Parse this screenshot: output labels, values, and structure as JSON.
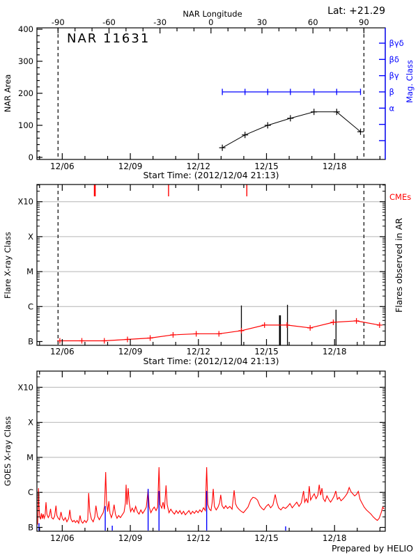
{
  "page": {
    "lat_label": "Lat: +21.29",
    "credit": "Prepared by HELIO"
  },
  "colors": {
    "red": "#ff0000",
    "blue": "#0000ff",
    "grid": "#b4b4b4",
    "black": "#000000",
    "background": "#ffffff"
  },
  "time_axis": {
    "start_label": "Start Time: (2012/12/04 21:13)",
    "xlim_days": [
      0,
      15.35
    ],
    "day_tick_first_offset": 0.116,
    "num_day_ticks": 16,
    "major_day_indices": [
      1,
      4,
      7,
      10,
      13
    ],
    "major_labels": [
      "12/06",
      "12/09",
      "12/12",
      "12/15",
      "12/18"
    ]
  },
  "chart_data": [
    {
      "id": "nar-area",
      "type": "line",
      "title": "NAR 11631",
      "ylabel": "NAR Area",
      "ylim": [
        0,
        400
      ],
      "ytick_values": [
        0,
        100,
        200,
        300,
        400
      ],
      "y_minor_step": 20,
      "top_axis": {
        "label": "NAR Longitude",
        "tick_labels": [
          "-90",
          "-60",
          "-30",
          "0",
          "30",
          "60",
          "90"
        ],
        "tick_degrees": [
          -90,
          -60,
          -30,
          0,
          30,
          60,
          90
        ],
        "minor_step_deg": 10,
        "deg_range": [
          -90,
          90
        ],
        "day_range": [
          0.93,
          14.41
        ]
      },
      "mag_axis": {
        "label": "Mag. Class",
        "tick_labels": [
          "βγδ",
          "βδ",
          "βγ",
          "β",
          "α"
        ],
        "beta_index": 3
      },
      "dashed_vlines_days": [
        0.93,
        14.41
      ],
      "series": [
        {
          "name": "nar-area-curve",
          "days": [
            8.17,
            9.17,
            10.17,
            11.17,
            12.21,
            13.21,
            14.26
          ],
          "values": [
            30,
            70,
            100,
            122,
            142,
            142,
            80
          ]
        },
        {
          "name": "mag-class-line",
          "level": "β",
          "days": [
            8.17,
            9.17,
            10.17,
            11.17,
            12.21,
            13.21,
            14.26
          ]
        }
      ],
      "xlabel": "Start Time: (2012/12/04 21:13)"
    },
    {
      "id": "flare-class",
      "type": "line",
      "ylabel": "Flare X-ray Class",
      "ytick_labels": [
        "B",
        "C",
        "M",
        "X",
        "X10"
      ],
      "right_label": "Flares observed in AR",
      "cmes": {
        "label": "CMEs",
        "days": [
          2.55,
          5.8,
          9.25
        ],
        "widths": [
          2.6,
          1.4,
          1.4
        ]
      },
      "flares": {
        "days": [
          9.01,
          10.71,
          11.04,
          13.18
        ],
        "peak_log_flux": [
          -5.97,
          -6.25,
          -5.95,
          -6.09
        ],
        "widths": [
          1.3,
          2.6,
          1.3,
          1.3
        ]
      },
      "daily_mean": {
        "days": [
          1.01,
          1.98,
          2.97,
          3.99,
          4.99,
          6.0,
          7.02,
          8.02,
          9.01,
          10.03,
          11.02,
          12.04,
          13.06,
          14.08,
          15.1
        ],
        "log_flux": [
          -6.98,
          -6.98,
          -6.98,
          -6.94,
          -6.9,
          -6.81,
          -6.78,
          -6.78,
          -6.69,
          -6.53,
          -6.53,
          -6.61,
          -6.45,
          -6.41,
          -6.53
        ]
      },
      "dashed_vlines_days": [
        0.93,
        14.41
      ],
      "xlabel": "Start Time: (2012/12/04 21:13)"
    },
    {
      "id": "goes-flux",
      "type": "line",
      "ylabel": "GOES X-ray Class",
      "ytick_labels": [
        "B",
        "C",
        "M",
        "X",
        "X10"
      ],
      "blue_vlines": {
        "days": [
          0.09,
          3.01,
          3.32,
          4.9,
          5.38,
          7.48,
          10.96
        ],
        "top_log_flux": [
          -6.88,
          -6.39,
          -6.95,
          -5.9,
          -5.96,
          -5.96,
          -6.97
        ]
      },
      "flux_log": [
        [
          0.03,
          -6.92
        ],
        [
          0.05,
          -6.55
        ],
        [
          0.07,
          -5.88
        ],
        [
          0.09,
          -6.35
        ],
        [
          0.12,
          -6.68
        ],
        [
          0.16,
          -6.77
        ],
        [
          0.2,
          -6.6
        ],
        [
          0.24,
          -6.75
        ],
        [
          0.28,
          -6.62
        ],
        [
          0.32,
          -6.74
        ],
        [
          0.36,
          -6.66
        ],
        [
          0.4,
          -6.28
        ],
        [
          0.44,
          -6.62
        ],
        [
          0.5,
          -6.72
        ],
        [
          0.55,
          -6.66
        ],
        [
          0.6,
          -6.47
        ],
        [
          0.65,
          -6.72
        ],
        [
          0.72,
          -6.76
        ],
        [
          0.78,
          -6.68
        ],
        [
          0.84,
          -6.38
        ],
        [
          0.88,
          -6.66
        ],
        [
          0.94,
          -6.74
        ],
        [
          1.0,
          -6.78
        ],
        [
          1.06,
          -6.56
        ],
        [
          1.12,
          -6.74
        ],
        [
          1.18,
          -6.8
        ],
        [
          1.25,
          -6.72
        ],
        [
          1.32,
          -6.84
        ],
        [
          1.4,
          -6.74
        ],
        [
          1.45,
          -6.5
        ],
        [
          1.5,
          -6.76
        ],
        [
          1.57,
          -6.84
        ],
        [
          1.64,
          -6.8
        ],
        [
          1.7,
          -6.86
        ],
        [
          1.77,
          -6.8
        ],
        [
          1.84,
          -6.88
        ],
        [
          1.9,
          -6.66
        ],
        [
          1.95,
          -6.82
        ],
        [
          2.02,
          -6.88
        ],
        [
          2.1,
          -6.8
        ],
        [
          2.17,
          -6.86
        ],
        [
          2.24,
          -6.78
        ],
        [
          2.28,
          -6.02
        ],
        [
          2.33,
          -6.55
        ],
        [
          2.4,
          -6.76
        ],
        [
          2.48,
          -6.84
        ],
        [
          2.55,
          -6.7
        ],
        [
          2.6,
          -6.38
        ],
        [
          2.67,
          -6.68
        ],
        [
          2.75,
          -6.78
        ],
        [
          2.83,
          -6.68
        ],
        [
          2.92,
          -6.58
        ],
        [
          2.98,
          -6.4
        ],
        [
          3.03,
          -5.42
        ],
        [
          3.07,
          -6.3
        ],
        [
          3.12,
          -6.55
        ],
        [
          3.17,
          -6.25
        ],
        [
          3.22,
          -6.6
        ],
        [
          3.28,
          -6.72
        ],
        [
          3.34,
          -6.6
        ],
        [
          3.4,
          -6.35
        ],
        [
          3.46,
          -6.62
        ],
        [
          3.53,
          -6.74
        ],
        [
          3.6,
          -6.66
        ],
        [
          3.68,
          -6.72
        ],
        [
          3.76,
          -6.64
        ],
        [
          3.84,
          -6.56
        ],
        [
          3.9,
          -6.3
        ],
        [
          3.93,
          -5.78
        ],
        [
          3.97,
          -6.35
        ],
        [
          4.02,
          -5.88
        ],
        [
          4.07,
          -6.3
        ],
        [
          4.13,
          -6.55
        ],
        [
          4.2,
          -6.45
        ],
        [
          4.28,
          -6.56
        ],
        [
          4.35,
          -6.4
        ],
        [
          4.43,
          -6.56
        ],
        [
          4.5,
          -6.62
        ],
        [
          4.58,
          -6.5
        ],
        [
          4.66,
          -6.6
        ],
        [
          4.74,
          -6.52
        ],
        [
          4.82,
          -6.42
        ],
        [
          4.9,
          -5.92
        ],
        [
          4.95,
          -6.42
        ],
        [
          5.02,
          -6.58
        ],
        [
          5.1,
          -6.48
        ],
        [
          5.17,
          -6.42
        ],
        [
          5.25,
          -6.52
        ],
        [
          5.32,
          -6.42
        ],
        [
          5.38,
          -5.28
        ],
        [
          5.43,
          -6.35
        ],
        [
          5.5,
          -6.45
        ],
        [
          5.56,
          -6.28
        ],
        [
          5.62,
          -6.48
        ],
        [
          5.69,
          -5.8
        ],
        [
          5.74,
          -6.35
        ],
        [
          5.82,
          -6.58
        ],
        [
          5.9,
          -6.48
        ],
        [
          5.98,
          -6.56
        ],
        [
          6.06,
          -6.62
        ],
        [
          6.14,
          -6.52
        ],
        [
          6.22,
          -6.6
        ],
        [
          6.3,
          -6.52
        ],
        [
          6.38,
          -6.62
        ],
        [
          6.46,
          -6.54
        ],
        [
          6.54,
          -6.64
        ],
        [
          6.62,
          -6.58
        ],
        [
          6.7,
          -6.52
        ],
        [
          6.78,
          -6.62
        ],
        [
          6.86,
          -6.54
        ],
        [
          6.94,
          -6.6
        ],
        [
          7.02,
          -6.52
        ],
        [
          7.1,
          -6.58
        ],
        [
          7.18,
          -6.5
        ],
        [
          7.26,
          -6.56
        ],
        [
          7.34,
          -6.44
        ],
        [
          7.42,
          -6.52
        ],
        [
          7.48,
          -5.28
        ],
        [
          7.53,
          -6.35
        ],
        [
          7.6,
          -6.48
        ],
        [
          7.67,
          -6.52
        ],
        [
          7.72,
          -6.3
        ],
        [
          7.77,
          -5.9
        ],
        [
          7.82,
          -6.4
        ],
        [
          7.9,
          -6.5
        ],
        [
          7.98,
          -6.42
        ],
        [
          8.05,
          -6.3
        ],
        [
          8.1,
          -6.07
        ],
        [
          8.16,
          -6.38
        ],
        [
          8.24,
          -6.46
        ],
        [
          8.32,
          -6.38
        ],
        [
          8.4,
          -6.46
        ],
        [
          8.5,
          -6.4
        ],
        [
          8.6,
          -6.48
        ],
        [
          8.69,
          -5.94
        ],
        [
          8.75,
          -6.32
        ],
        [
          8.82,
          -6.42
        ],
        [
          8.9,
          -6.48
        ],
        [
          9.0,
          -6.54
        ],
        [
          9.1,
          -6.58
        ],
        [
          9.2,
          -6.5
        ],
        [
          9.3,
          -6.42
        ],
        [
          9.42,
          -6.22
        ],
        [
          9.52,
          -6.14
        ],
        [
          9.62,
          -6.16
        ],
        [
          9.72,
          -6.22
        ],
        [
          9.82,
          -6.38
        ],
        [
          9.92,
          -6.46
        ],
        [
          10.0,
          -6.5
        ],
        [
          10.1,
          -6.4
        ],
        [
          10.2,
          -6.34
        ],
        [
          10.3,
          -6.44
        ],
        [
          10.4,
          -6.36
        ],
        [
          10.5,
          -6.06
        ],
        [
          10.57,
          -6.28
        ],
        [
          10.65,
          -6.44
        ],
        [
          10.75,
          -6.5
        ],
        [
          10.85,
          -6.42
        ],
        [
          10.95,
          -6.46
        ],
        [
          11.05,
          -6.4
        ],
        [
          11.15,
          -6.32
        ],
        [
          11.25,
          -6.44
        ],
        [
          11.35,
          -6.36
        ],
        [
          11.45,
          -6.28
        ],
        [
          11.55,
          -6.4
        ],
        [
          11.65,
          -6.3
        ],
        [
          11.75,
          -5.96
        ],
        [
          11.8,
          -6.28
        ],
        [
          11.87,
          -6.18
        ],
        [
          11.94,
          -6.3
        ],
        [
          12.0,
          -5.82
        ],
        [
          12.06,
          -6.22
        ],
        [
          12.14,
          -6.12
        ],
        [
          12.22,
          -6.04
        ],
        [
          12.3,
          -6.18
        ],
        [
          12.38,
          -6.08
        ],
        [
          12.44,
          -5.78
        ],
        [
          12.5,
          -6.08
        ],
        [
          12.56,
          -5.88
        ],
        [
          12.62,
          -6.18
        ],
        [
          12.7,
          -6.26
        ],
        [
          12.78,
          -6.1
        ],
        [
          12.86,
          -6.2
        ],
        [
          12.94,
          -6.28
        ],
        [
          13.02,
          -6.2
        ],
        [
          13.1,
          -6.1
        ],
        [
          13.17,
          -5.96
        ],
        [
          13.24,
          -6.2
        ],
        [
          13.32,
          -6.14
        ],
        [
          13.4,
          -6.24
        ],
        [
          13.5,
          -6.18
        ],
        [
          13.6,
          -6.1
        ],
        [
          13.68,
          -6.02
        ],
        [
          13.76,
          -5.86
        ],
        [
          13.84,
          -5.98
        ],
        [
          13.92,
          -6.04
        ],
        [
          14.0,
          -6.1
        ],
        [
          14.08,
          -6.06
        ],
        [
          14.16,
          -5.97
        ],
        [
          14.24,
          -6.2
        ],
        [
          14.32,
          -6.3
        ],
        [
          14.42,
          -6.42
        ],
        [
          14.52,
          -6.5
        ],
        [
          14.62,
          -6.56
        ],
        [
          14.72,
          -6.62
        ],
        [
          14.82,
          -6.7
        ],
        [
          14.92,
          -6.76
        ],
        [
          15.0,
          -6.8
        ],
        [
          15.08,
          -6.74
        ],
        [
          15.16,
          -6.6
        ],
        [
          15.24,
          -6.42
        ],
        [
          15.3,
          -6.48
        ]
      ]
    }
  ]
}
